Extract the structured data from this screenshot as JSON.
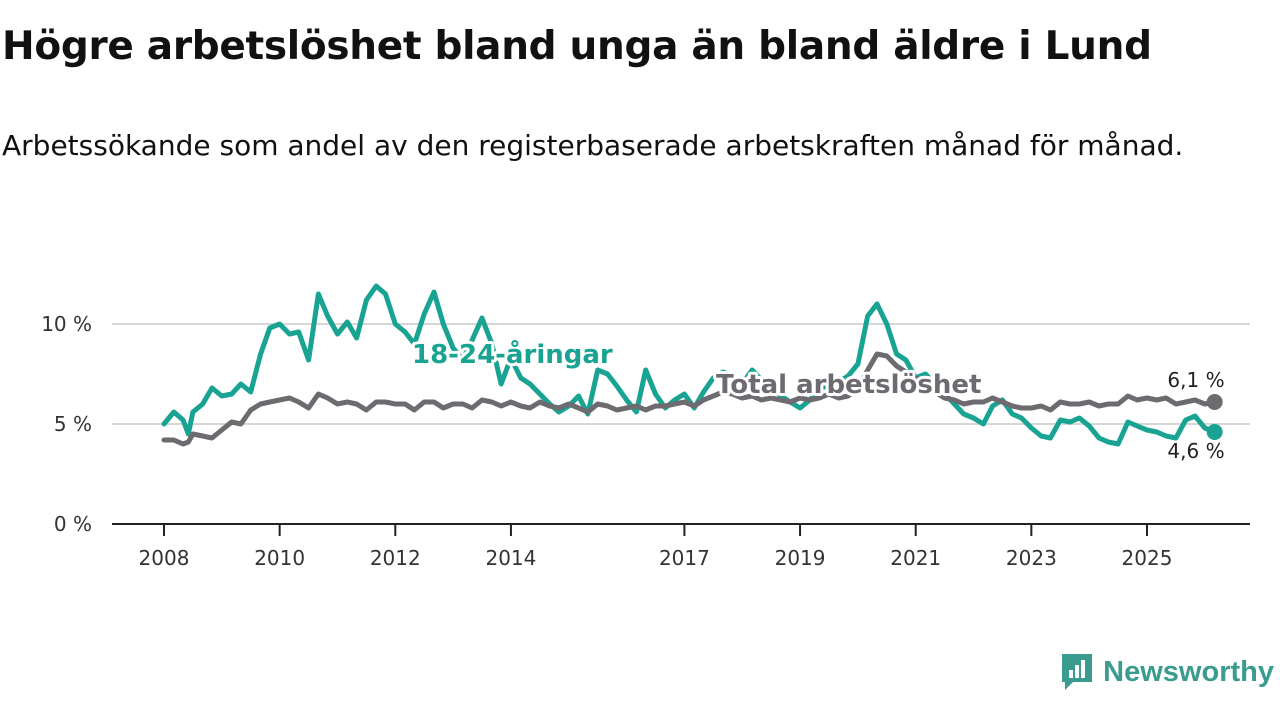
{
  "title": "Högre arbetslöshet bland unga än bland äldre i Lund",
  "subtitle": "Arbetssökande som andel av den registerbaserade arbetskraften månad för månad.",
  "brand": {
    "name": "Newsworthy",
    "icon": "newsworthy-logo-icon",
    "color": "#3a9c8e"
  },
  "chart_data": {
    "type": "line",
    "title": "Högre arbetslöshet bland unga än bland äldre i Lund",
    "xlabel": "",
    "ylabel": "",
    "xlim": [
      2008.0,
      2026.83
    ],
    "ylim": [
      0,
      12
    ],
    "x_ticks": [
      {
        "value": 2008,
        "label": "2008"
      },
      {
        "value": 2010,
        "label": "2010"
      },
      {
        "value": 2012,
        "label": "2012"
      },
      {
        "value": 2014,
        "label": "2014"
      },
      {
        "value": 2017,
        "label": "2017"
      },
      {
        "value": 2019,
        "label": "2019"
      },
      {
        "value": 2021,
        "label": "2021"
      },
      {
        "value": 2023,
        "label": "2023"
      },
      {
        "value": 2025,
        "label": "2025"
      }
    ],
    "y_ticks": [
      {
        "value": 0,
        "label": "0 %"
      },
      {
        "value": 5,
        "label": "5 %"
      },
      {
        "value": 10,
        "label": "10 %"
      }
    ],
    "grid": true,
    "series": [
      {
        "name": "18-24-åringar",
        "label": "18-24-åringar",
        "color": "#18a392",
        "end_label": "4,6 %",
        "x": [
          2008.0,
          2008.17,
          2008.33,
          2008.42,
          2008.5,
          2008.67,
          2008.83,
          2009.0,
          2009.17,
          2009.33,
          2009.5,
          2009.67,
          2009.83,
          2010.0,
          2010.17,
          2010.33,
          2010.5,
          2010.67,
          2010.83,
          2011.0,
          2011.17,
          2011.33,
          2011.5,
          2011.67,
          2011.83,
          2012.0,
          2012.17,
          2012.33,
          2012.5,
          2012.67,
          2012.83,
          2013.0,
          2013.17,
          2013.33,
          2013.5,
          2013.67,
          2013.83,
          2014.0,
          2014.17,
          2014.33,
          2014.5,
          2014.67,
          2014.83,
          2015.0,
          2015.17,
          2015.33,
          2015.5,
          2015.67,
          2015.83,
          2016.0,
          2016.17,
          2016.33,
          2016.5,
          2016.67,
          2016.83,
          2017.0,
          2017.17,
          2017.33,
          2017.5,
          2017.67,
          2017.83,
          2018.0,
          2018.17,
          2018.33,
          2018.5,
          2018.67,
          2018.83,
          2019.0,
          2019.17,
          2019.33,
          2019.5,
          2019.67,
          2019.83,
          2020.0,
          2020.17,
          2020.33,
          2020.5,
          2020.67,
          2020.83,
          2021.0,
          2021.17,
          2021.33,
          2021.5,
          2021.67,
          2021.83,
          2022.0,
          2022.17,
          2022.33,
          2022.5,
          2022.67,
          2022.83,
          2023.0,
          2023.17,
          2023.33,
          2023.5,
          2023.67,
          2023.83,
          2024.0,
          2024.17,
          2024.33,
          2024.5,
          2024.67,
          2024.83,
          2025.0,
          2025.17,
          2025.33,
          2025.5,
          2025.67,
          2025.83,
          2026.0,
          2026.17
        ],
        "values": [
          5.0,
          5.6,
          5.2,
          4.5,
          5.6,
          6.0,
          6.8,
          6.4,
          6.5,
          7.0,
          6.6,
          8.5,
          9.8,
          10.0,
          9.5,
          9.6,
          8.2,
          11.5,
          10.4,
          9.5,
          10.1,
          9.3,
          11.2,
          11.9,
          11.5,
          10.0,
          9.6,
          9.0,
          10.5,
          11.6,
          10.0,
          8.8,
          8.2,
          9.2,
          10.3,
          9.0,
          7.0,
          8.3,
          7.3,
          7.0,
          6.5,
          6.0,
          5.6,
          5.9,
          6.4,
          5.5,
          7.7,
          7.5,
          6.9,
          6.2,
          5.6,
          7.7,
          6.5,
          5.8,
          6.2,
          6.5,
          5.8,
          6.6,
          7.3,
          7.6,
          7.4,
          7.0,
          7.7,
          7.2,
          6.8,
          6.4,
          6.1,
          5.8,
          6.2,
          6.8,
          6.9,
          7.1,
          7.4,
          8.0,
          10.4,
          11.0,
          10.0,
          8.5,
          8.2,
          7.3,
          7.5,
          7.0,
          6.5,
          6.0,
          5.5,
          5.3,
          5.0,
          5.9,
          6.2,
          5.5,
          5.3,
          4.8,
          4.4,
          4.3,
          5.2,
          5.1,
          5.3,
          4.9,
          4.3,
          4.1,
          4.0,
          5.1,
          4.9,
          4.7,
          4.6,
          4.4,
          4.3,
          5.2,
          5.4,
          4.8,
          4.6
        ]
      },
      {
        "name": "Total arbetslöshet",
        "label": "Total arbetslöshet",
        "color": "#6d6a70",
        "end_label": "6,1 %",
        "x": [
          2008.0,
          2008.17,
          2008.33,
          2008.42,
          2008.5,
          2008.67,
          2008.83,
          2009.0,
          2009.17,
          2009.33,
          2009.5,
          2009.67,
          2009.83,
          2010.0,
          2010.17,
          2010.33,
          2010.5,
          2010.67,
          2010.83,
          2011.0,
          2011.17,
          2011.33,
          2011.5,
          2011.67,
          2011.83,
          2012.0,
          2012.17,
          2012.33,
          2012.5,
          2012.67,
          2012.83,
          2013.0,
          2013.17,
          2013.33,
          2013.5,
          2013.67,
          2013.83,
          2014.0,
          2014.17,
          2014.33,
          2014.5,
          2014.67,
          2014.83,
          2015.0,
          2015.17,
          2015.33,
          2015.5,
          2015.67,
          2015.83,
          2016.0,
          2016.17,
          2016.33,
          2016.5,
          2016.67,
          2016.83,
          2017.0,
          2017.17,
          2017.33,
          2017.5,
          2017.67,
          2017.83,
          2018.0,
          2018.17,
          2018.33,
          2018.5,
          2018.67,
          2018.83,
          2019.0,
          2019.17,
          2019.33,
          2019.5,
          2019.67,
          2019.83,
          2020.0,
          2020.17,
          2020.33,
          2020.5,
          2020.67,
          2020.83,
          2021.0,
          2021.17,
          2021.33,
          2021.5,
          2021.67,
          2021.83,
          2022.0,
          2022.17,
          2022.33,
          2022.5,
          2022.67,
          2022.83,
          2023.0,
          2023.17,
          2023.33,
          2023.5,
          2023.67,
          2023.83,
          2024.0,
          2024.17,
          2024.33,
          2024.5,
          2024.67,
          2024.83,
          2025.0,
          2025.17,
          2025.33,
          2025.5,
          2025.67,
          2025.83,
          2026.0,
          2026.17
        ],
        "values": [
          4.2,
          4.2,
          4.0,
          4.1,
          4.5,
          4.4,
          4.3,
          4.7,
          5.1,
          5.0,
          5.7,
          6.0,
          6.1,
          6.2,
          6.3,
          6.1,
          5.8,
          6.5,
          6.3,
          6.0,
          6.1,
          6.0,
          5.7,
          6.1,
          6.1,
          6.0,
          6.0,
          5.7,
          6.1,
          6.1,
          5.8,
          6.0,
          6.0,
          5.8,
          6.2,
          6.1,
          5.9,
          6.1,
          5.9,
          5.8,
          6.1,
          5.9,
          5.8,
          6.0,
          5.8,
          5.6,
          6.0,
          5.9,
          5.7,
          5.8,
          5.9,
          5.7,
          5.9,
          5.9,
          6.0,
          6.1,
          5.9,
          6.2,
          6.4,
          6.6,
          6.5,
          6.3,
          6.4,
          6.2,
          6.3,
          6.2,
          6.1,
          6.3,
          6.2,
          6.3,
          6.5,
          6.3,
          6.4,
          6.8,
          7.7,
          8.5,
          8.4,
          7.9,
          7.6,
          7.3,
          7.0,
          6.6,
          6.3,
          6.2,
          6.0,
          6.1,
          6.1,
          6.3,
          6.1,
          5.9,
          5.8,
          5.8,
          5.9,
          5.7,
          6.1,
          6.0,
          6.0,
          6.1,
          5.9,
          6.0,
          6.0,
          6.4,
          6.2,
          6.3,
          6.2,
          6.3,
          6.0,
          6.1,
          6.2,
          6.0,
          6.1
        ]
      }
    ]
  }
}
